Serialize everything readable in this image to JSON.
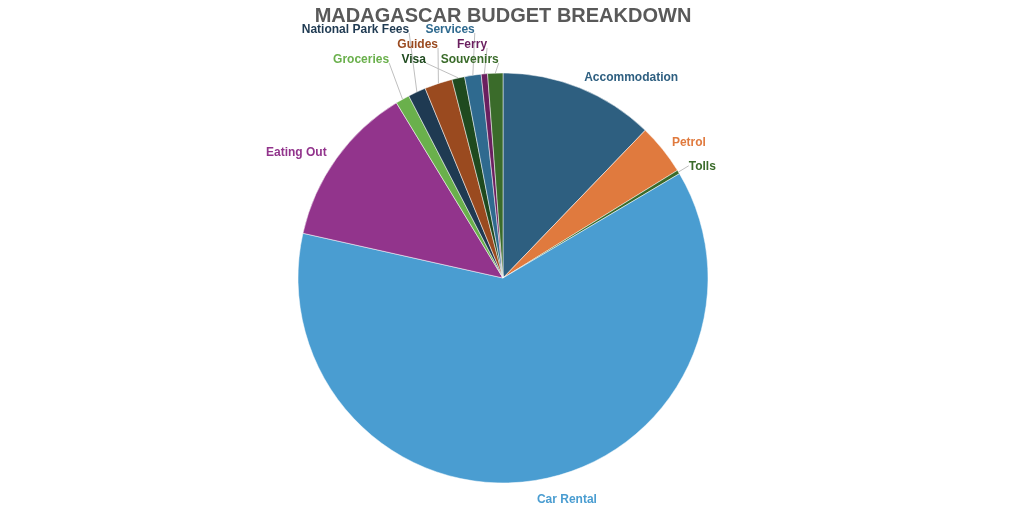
{
  "chart_data": {
    "type": "pie",
    "title": "MADAGASCAR BUDGET BREAKDOWN",
    "categories": [
      "Accommodation",
      "Petrol",
      "Tolls",
      "Car Rental",
      "Eating Out",
      "Groceries",
      "National Park Fees",
      "Guides",
      "Visa",
      "Services",
      "Ferry",
      "Souvenirs"
    ],
    "values": [
      12.2,
      4.0,
      0.3,
      62.0,
      12.8,
      1.1,
      1.4,
      2.2,
      1.0,
      1.3,
      0.5,
      1.2
    ],
    "colors": [
      "#2e5f80",
      "#e07a3e",
      "#3a6b2a",
      "#4a9dd1",
      "#92348c",
      "#6ab04c",
      "#1f3a52",
      "#9a4a1f",
      "#1f4a1f",
      "#2f6a8f",
      "#6a1f5f",
      "#3a6b2a"
    ]
  }
}
